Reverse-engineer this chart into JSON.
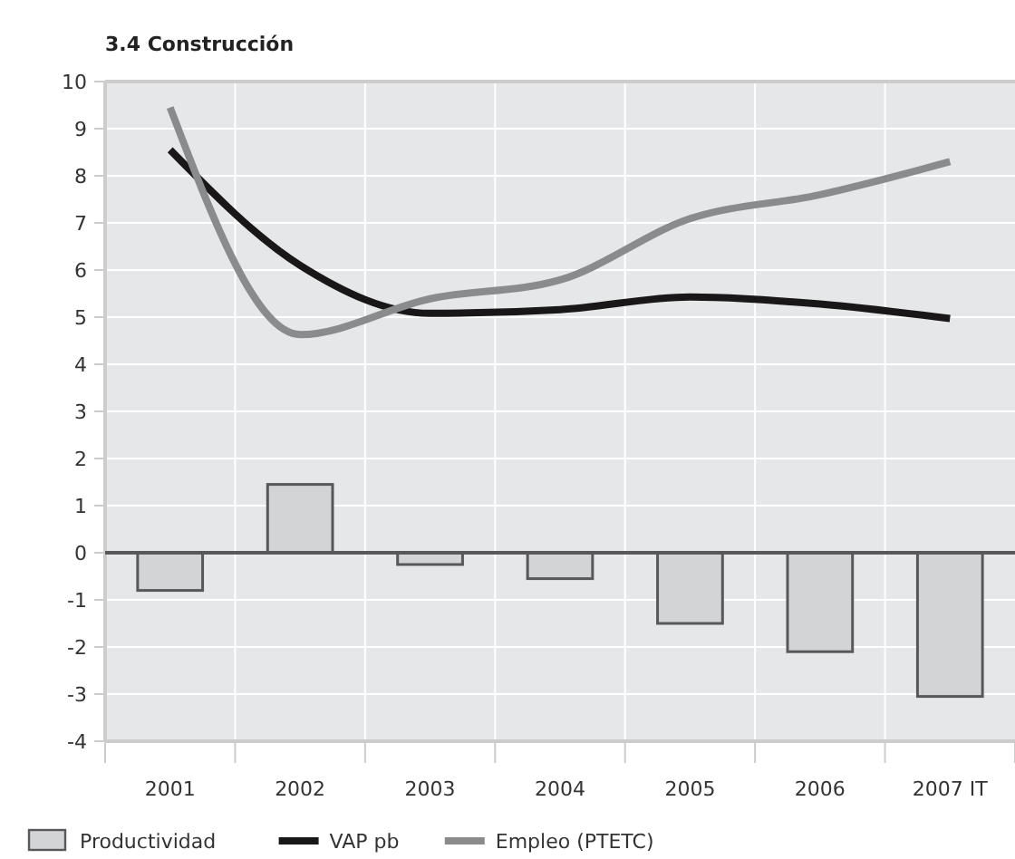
{
  "chart_data": {
    "type": "bar",
    "title": "3.4 Construcción",
    "categories": [
      "2001",
      "2002",
      "2003",
      "2004",
      "2005",
      "2006",
      "2007 IT"
    ],
    "series": [
      {
        "name": "Productividad",
        "color": "#d3d4d6",
        "values": [
          -0.8,
          1.45,
          -0.25,
          -0.55,
          -1.5,
          -2.1,
          -3.05
        ]
      },
      {
        "name": "VAP pb",
        "type": "line",
        "color": "#1a1718",
        "values": [
          8.55,
          6.1,
          5.08,
          5.16,
          5.43,
          5.28,
          4.97
        ]
      },
      {
        "name": "Empleo (PTETC)",
        "type": "line",
        "color": "#8a8b8d",
        "values": [
          9.45,
          4.63,
          5.39,
          5.79,
          7.09,
          7.6,
          8.3
        ]
      }
    ],
    "ylim": [
      -4,
      10
    ],
    "yticks": [
      -4,
      -3,
      -2,
      -1,
      0,
      1,
      2,
      3,
      4,
      5,
      6,
      7,
      8,
      9,
      10
    ],
    "grid": true,
    "legend": "bottom"
  }
}
